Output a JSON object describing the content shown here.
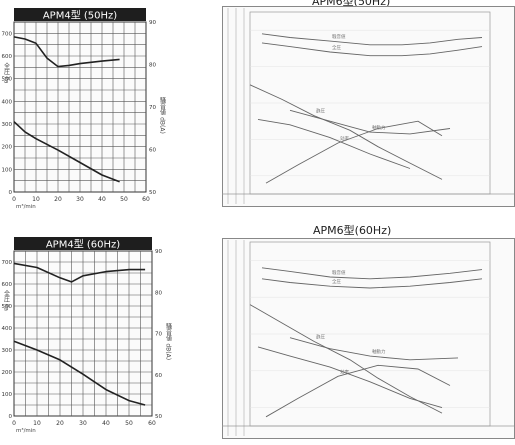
{
  "captions": {
    "top_right": "APM6型(50Hz)",
    "bottom_right": "APM6型(60Hz)"
  },
  "chart_data": [
    {
      "type": "line",
      "title": "APM4型 (50Hz)",
      "xlabel": "m³/min",
      "ylabel_left": "全圧 Pa",
      "ylabel_right": "騒音値 dB(A)",
      "x_ticks": [
        "0",
        "10",
        "20",
        "30",
        "40",
        "50",
        "60"
      ],
      "y_left_ticks": [
        "0",
        "100",
        "200",
        "300",
        "400",
        "500",
        "600",
        "700"
      ],
      "y_right_ticks": [
        "50",
        "60",
        "70",
        "80",
        "90"
      ],
      "xlim": [
        0,
        60
      ],
      "ylim_left": [
        0,
        750
      ],
      "ylim_right": [
        50,
        90
      ],
      "series": [
        {
          "axis": "right",
          "x": [
            0,
            5,
            10,
            15,
            20,
            25,
            30,
            40,
            48
          ],
          "y": [
            86.5,
            86.0,
            85.0,
            81.5,
            79.5,
            79.8,
            80.2,
            80.8,
            81.2
          ]
        },
        {
          "axis": "left",
          "x": [
            0,
            5,
            10,
            20,
            30,
            40,
            48
          ],
          "y": [
            310,
            265,
            235,
            185,
            130,
            75,
            45
          ]
        }
      ]
    },
    {
      "type": "line",
      "title": "APM4型 (60Hz)",
      "xlabel": "m³/min",
      "ylabel_left": "全圧 Pa",
      "ylabel_right": "騒音値 dB(A)",
      "x_ticks": [
        "0",
        "10",
        "20",
        "30",
        "40",
        "50",
        "60"
      ],
      "y_left_ticks": [
        "0",
        "100",
        "200",
        "300",
        "400",
        "500",
        "600",
        "700"
      ],
      "y_right_ticks": [
        "50",
        "60",
        "70",
        "80",
        "90"
      ],
      "xlim": [
        0,
        60
      ],
      "ylim_left": [
        0,
        750
      ],
      "ylim_right": [
        50,
        90
      ],
      "series": [
        {
          "axis": "right",
          "x": [
            0,
            10,
            20,
            25,
            30,
            40,
            50,
            57
          ],
          "y": [
            87.0,
            86.0,
            83.5,
            82.5,
            84.0,
            85.0,
            85.5,
            85.5
          ]
        },
        {
          "axis": "left",
          "x": [
            0,
            10,
            20,
            30,
            40,
            50,
            57
          ],
          "y": [
            340,
            300,
            255,
            190,
            120,
            70,
            50
          ]
        }
      ]
    },
    {
      "type": "line",
      "title": "",
      "xlim": [
        0,
        60
      ],
      "ylim": [
        0,
        100
      ],
      "series": [
        {
          "label": "騒音値",
          "x": [
            3,
            10,
            20,
            30,
            38,
            45,
            52,
            58
          ],
          "y": [
            88,
            86,
            84,
            82,
            82,
            83,
            85,
            86
          ]
        },
        {
          "label": "全圧",
          "x": [
            3,
            10,
            20,
            30,
            38,
            45,
            52,
            58
          ],
          "y": [
            83,
            81,
            78,
            76,
            76,
            77,
            79,
            81
          ]
        },
        {
          "label": "静圧",
          "x": [
            0,
            8,
            16,
            25,
            32,
            40,
            48
          ],
          "y": [
            60,
            52,
            43,
            35,
            26,
            17,
            8
          ]
        },
        {
          "label": "効率",
          "x": [
            4,
            12,
            22,
            32,
            42,
            48
          ],
          "y": [
            6,
            16,
            28,
            36,
            40,
            32
          ]
        },
        {
          "label": "軸動力",
          "x": [
            10,
            20,
            30,
            40,
            50
          ],
          "y": [
            46,
            40,
            34,
            33,
            36
          ]
        },
        {
          "label": "",
          "x": [
            2,
            10,
            20,
            30,
            40
          ],
          "y": [
            41,
            38,
            31,
            22,
            14
          ]
        }
      ]
    },
    {
      "type": "line",
      "title": "",
      "xlim": [
        0,
        60
      ],
      "ylim": [
        0,
        100
      ],
      "series": [
        {
          "label": "騒音値",
          "x": [
            3,
            10,
            20,
            30,
            40,
            50,
            58
          ],
          "y": [
            86,
            84,
            81,
            80,
            81,
            83,
            85
          ]
        },
        {
          "label": "全圧",
          "x": [
            3,
            10,
            20,
            30,
            40,
            50,
            58
          ],
          "y": [
            80,
            78,
            76,
            75,
            76,
            78,
            80
          ]
        },
        {
          "label": "静圧",
          "x": [
            0,
            8,
            16,
            25,
            32,
            40,
            48
          ],
          "y": [
            66,
            56,
            46,
            36,
            26,
            16,
            7
          ]
        },
        {
          "label": "効率",
          "x": [
            4,
            12,
            22,
            32,
            42,
            50
          ],
          "y": [
            5,
            15,
            27,
            33,
            31,
            22
          ]
        },
        {
          "label": "軸動力",
          "x": [
            10,
            20,
            30,
            40,
            52
          ],
          "y": [
            48,
            42,
            38,
            36,
            37
          ]
        },
        {
          "label": "",
          "x": [
            2,
            10,
            20,
            30,
            40,
            48
          ],
          "y": [
            43,
            38,
            32,
            24,
            15,
            10
          ]
        }
      ]
    }
  ]
}
